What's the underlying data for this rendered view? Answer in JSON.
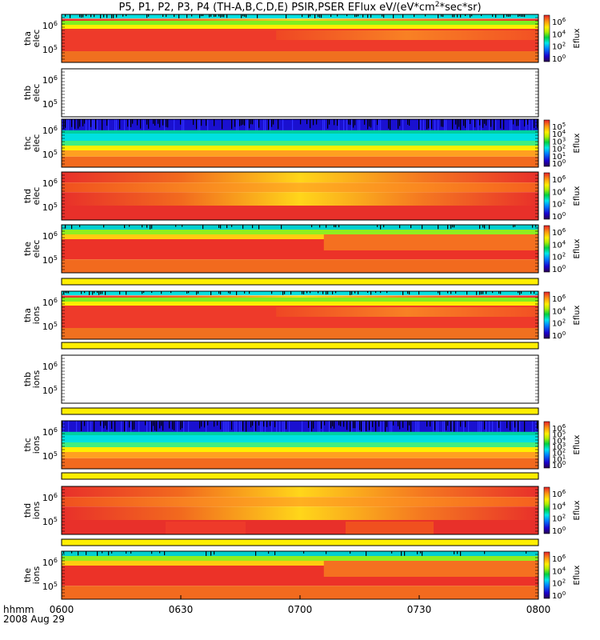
{
  "title": {
    "main": "P5, P1, P2, P3, P4 (TH-A,B,C,D,E) PSIR,PSER EFlux eV/(eV*cm",
    "sup": "2",
    "rest": "*sec*sr)"
  },
  "footer": {
    "time_label": "hhmm",
    "date_label": "2008 Aug 29"
  },
  "chart_data": {
    "type": "heatmap",
    "x_ticks": [
      "0600",
      "0630",
      "0700",
      "0730",
      "0800"
    ],
    "x_range": [
      "0600",
      "0800"
    ],
    "colorbar_label": "Eflux",
    "colors": {
      "saturated": "#e8202a",
      "background": "#ffffff",
      "bar_yellow": "#ffee00"
    },
    "panels": [
      {
        "probe": "tha",
        "species": "elec",
        "y_ticks": [
          "10^6",
          "10^5"
        ],
        "has_data": true,
        "pattern": "a",
        "cbar_ticks": [
          "10^6",
          "10^4",
          "10^2",
          "10^0"
        ]
      },
      {
        "probe": "thb",
        "species": "elec",
        "y_ticks": [
          "10^6",
          "10^5"
        ],
        "has_data": false,
        "pattern": "none",
        "cbar_ticks": []
      },
      {
        "probe": "thc",
        "species": "elec",
        "y_ticks": [
          "10^6",
          "10^5"
        ],
        "has_data": true,
        "pattern": "c",
        "cbar_ticks": [
          "10^5",
          "10^4",
          "10^3",
          "10^2",
          "10^1",
          "10^0"
        ]
      },
      {
        "probe": "thd",
        "species": "elec",
        "y_ticks": [
          "10^6",
          "10^5"
        ],
        "has_data": true,
        "pattern": "d",
        "cbar_ticks": [
          "10^6",
          "10^4",
          "10^2",
          "10^0"
        ]
      },
      {
        "probe": "the",
        "species": "elec",
        "y_ticks": [
          "10^6",
          "10^5"
        ],
        "has_data": true,
        "pattern": "e",
        "cbar_ticks": [
          "10^6",
          "10^4",
          "10^2",
          "10^0"
        ]
      },
      {
        "probe": "tha",
        "species": "ions",
        "y_ticks": [
          "10^6",
          "10^5"
        ],
        "has_data": true,
        "pattern": "a",
        "cbar_ticks": [
          "10^6",
          "10^4",
          "10^2",
          "10^0"
        ]
      },
      {
        "probe": "thb",
        "species": "ions",
        "y_ticks": [
          "10^6",
          "10^5"
        ],
        "has_data": false,
        "pattern": "none",
        "cbar_ticks": []
      },
      {
        "probe": "thc",
        "species": "ions",
        "y_ticks": [
          "10^6",
          "10^5"
        ],
        "has_data": true,
        "pattern": "c",
        "cbar_ticks": [
          "10^6",
          "10^5",
          "10^4",
          "10^3",
          "10^2",
          "10^1",
          "10^0"
        ]
      },
      {
        "probe": "thd",
        "species": "ions",
        "y_ticks": [
          "10^6",
          "10^5"
        ],
        "has_data": true,
        "pattern": "d2",
        "cbar_ticks": [
          "10^6",
          "10^4",
          "10^2",
          "10^0"
        ]
      },
      {
        "probe": "the",
        "species": "ions",
        "y_ticks": [
          "10^6",
          "10^5"
        ],
        "has_data": true,
        "pattern": "e",
        "cbar_ticks": [
          "10^6",
          "10^4",
          "10^2",
          "10^0"
        ]
      }
    ],
    "separator_bars_after_panels": [
      4,
      5,
      6,
      7,
      8
    ]
  }
}
